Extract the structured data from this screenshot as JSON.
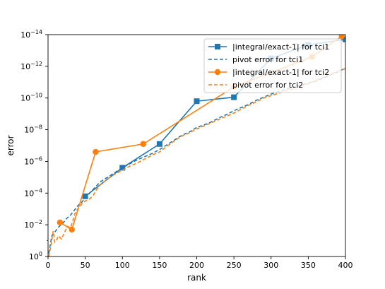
{
  "chart_data": {
    "type": "line",
    "xlabel": "rank",
    "ylabel": "error",
    "xlim": [
      0,
      400
    ],
    "ylim_exponent": [
      -14,
      0
    ],
    "yscale": "log",
    "grid": false,
    "legend_placement": "top-right",
    "x_ticks": [
      {
        "value": 0,
        "label": "0"
      },
      {
        "value": 50,
        "label": "50"
      },
      {
        "value": 100,
        "label": "100"
      },
      {
        "value": 150,
        "label": "150"
      },
      {
        "value": 200,
        "label": "200"
      },
      {
        "value": 250,
        "label": "250"
      },
      {
        "value": 300,
        "label": "300"
      },
      {
        "value": 350,
        "label": "350"
      },
      {
        "value": 400,
        "label": "400"
      }
    ],
    "y_ticks": [
      {
        "exp": 0,
        "base": "10",
        "sup": "0"
      },
      {
        "exp": -2,
        "base": "10",
        "sup": "−2"
      },
      {
        "exp": -4,
        "base": "10",
        "sup": "−4"
      },
      {
        "exp": -6,
        "base": "10",
        "sup": "−6"
      },
      {
        "exp": -8,
        "base": "10",
        "sup": "−8"
      },
      {
        "exp": -10,
        "base": "10",
        "sup": "−10"
      },
      {
        "exp": -12,
        "base": "10",
        "sup": "−12"
      },
      {
        "exp": -14,
        "base": "10",
        "sup": "−14"
      }
    ],
    "series": [
      {
        "name": "|integral/exact-1| for tci1",
        "color": "#1f77b4",
        "style": "solid",
        "marker": "square",
        "points": [
          [
            50,
            -3.8
          ],
          [
            100,
            -5.6
          ],
          [
            150,
            -7.1
          ],
          [
            200,
            -9.8
          ],
          [
            250,
            -10.05
          ],
          [
            300,
            -12.5
          ],
          [
            350,
            -13.35
          ],
          [
            400,
            -13.7
          ]
        ]
      },
      {
        "name": "pivot error for tci1",
        "color": "#1f77b4",
        "style": "dashed",
        "marker": "none",
        "points": [
          [
            1,
            -0.2
          ],
          [
            5,
            -1.3
          ],
          [
            10,
            -1.6
          ],
          [
            15,
            -1.9
          ],
          [
            20,
            -2.1
          ],
          [
            25,
            -2.4
          ],
          [
            30,
            -2.6
          ],
          [
            35,
            -2.9
          ],
          [
            40,
            -3.2
          ],
          [
            45,
            -3.4
          ],
          [
            50,
            -3.7
          ],
          [
            60,
            -4.2
          ],
          [
            70,
            -4.7
          ],
          [
            80,
            -5.0
          ],
          [
            90,
            -5.3
          ],
          [
            100,
            -5.6
          ],
          [
            110,
            -5.85
          ],
          [
            120,
            -6.1
          ],
          [
            130,
            -6.3
          ],
          [
            140,
            -6.5
          ],
          [
            150,
            -6.75
          ],
          [
            160,
            -7.05
          ],
          [
            170,
            -7.35
          ],
          [
            180,
            -7.65
          ],
          [
            190,
            -7.85
          ],
          [
            200,
            -8.15
          ],
          [
            210,
            -8.3
          ],
          [
            220,
            -8.5
          ],
          [
            230,
            -8.75
          ],
          [
            240,
            -8.95
          ],
          [
            250,
            -9.2
          ],
          [
            260,
            -9.4
          ],
          [
            270,
            -9.6
          ],
          [
            280,
            -9.85
          ],
          [
            290,
            -10.05
          ],
          [
            300,
            -10.25
          ],
          [
            310,
            -10.4
          ],
          [
            320,
            -10.55
          ],
          [
            330,
            -10.7
          ],
          [
            340,
            -10.8
          ],
          [
            350,
            -10.95
          ],
          [
            360,
            -11.05
          ],
          [
            370,
            -11.25
          ],
          [
            380,
            -11.45
          ],
          [
            390,
            -11.65
          ],
          [
            400,
            -11.9
          ]
        ]
      },
      {
        "name": "|integral/exact-1| for tci2",
        "color": "#ff7f0e",
        "style": "solid",
        "marker": "circle",
        "points": [
          [
            16,
            -2.15
          ],
          [
            32,
            -1.7
          ],
          [
            64,
            -6.6
          ],
          [
            128,
            -7.1
          ],
          [
            250,
            -10.7
          ],
          [
            355,
            -12.6
          ],
          [
            395,
            -13.9
          ]
        ]
      },
      {
        "name": "pivot error for tci2",
        "color": "#ff7f0e",
        "style": "dashed",
        "marker": "none",
        "points": [
          [
            1,
            0.0
          ],
          [
            4,
            -0.7
          ],
          [
            7,
            -1.6
          ],
          [
            9,
            -0.9
          ],
          [
            11,
            -1.0
          ],
          [
            14,
            -1.3
          ],
          [
            18,
            -1.1
          ],
          [
            22,
            -1.5
          ],
          [
            26,
            -1.9
          ],
          [
            30,
            -1.8
          ],
          [
            33,
            -2.2
          ],
          [
            36,
            -2.7
          ],
          [
            40,
            -3.0
          ],
          [
            45,
            -3.3
          ],
          [
            50,
            -3.5
          ],
          [
            55,
            -3.6
          ],
          [
            60,
            -3.8
          ],
          [
            65,
            -4.2
          ],
          [
            70,
            -4.5
          ],
          [
            80,
            -4.9
          ],
          [
            90,
            -5.2
          ],
          [
            100,
            -5.45
          ],
          [
            110,
            -5.7
          ],
          [
            120,
            -5.9
          ],
          [
            130,
            -6.15
          ],
          [
            140,
            -6.4
          ],
          [
            150,
            -6.6
          ],
          [
            160,
            -6.95
          ],
          [
            170,
            -7.3
          ],
          [
            180,
            -7.6
          ],
          [
            190,
            -7.8
          ],
          [
            200,
            -8.05
          ],
          [
            210,
            -8.25
          ],
          [
            220,
            -8.45
          ],
          [
            230,
            -8.65
          ],
          [
            240,
            -8.85
          ],
          [
            250,
            -9.05
          ],
          [
            260,
            -9.3
          ],
          [
            270,
            -9.55
          ],
          [
            280,
            -9.75
          ],
          [
            290,
            -10.0
          ],
          [
            300,
            -10.15
          ],
          [
            310,
            -10.3
          ],
          [
            320,
            -10.45
          ],
          [
            330,
            -10.6
          ],
          [
            340,
            -10.75
          ],
          [
            350,
            -10.9
          ],
          [
            360,
            -11.1
          ],
          [
            370,
            -11.3
          ],
          [
            380,
            -11.5
          ],
          [
            390,
            -11.7
          ],
          [
            400,
            -11.85
          ]
        ]
      }
    ]
  }
}
